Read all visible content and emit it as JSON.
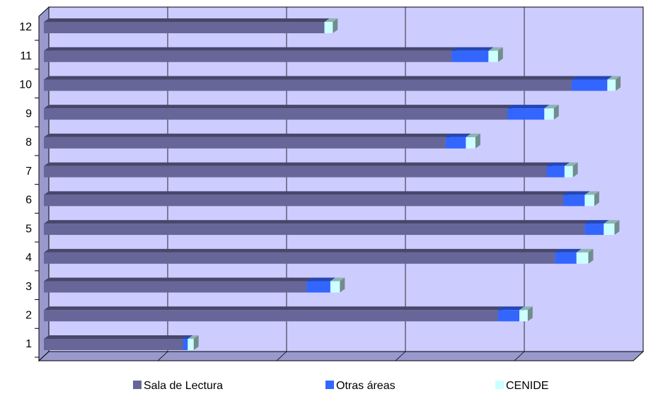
{
  "chart_data": {
    "type": "stacked-bar-3d",
    "categories": [
      "1",
      "2",
      "3",
      "4",
      "5",
      "6",
      "7",
      "8",
      "9",
      "10",
      "11",
      "12"
    ],
    "series": [
      {
        "name": "Sala de Lectura",
        "color": "#666699",
        "values": [
          1.17,
          3.82,
          2.21,
          4.3,
          4.55,
          4.37,
          4.23,
          3.38,
          3.9,
          4.44,
          3.43,
          2.36
        ]
      },
      {
        "name": "Otras áreas",
        "color": "#3366ff",
        "values": [
          0.04,
          0.18,
          0.2,
          0.18,
          0.16,
          0.18,
          0.15,
          0.17,
          0.31,
          0.3,
          0.31,
          0
        ]
      },
      {
        "name": "CENIDE",
        "color": "#ccffff",
        "values": [
          0.05,
          0.07,
          0.08,
          0.1,
          0.09,
          0.08,
          0.07,
          0.08,
          0.08,
          0.07,
          0.08,
          0.07
        ]
      }
    ],
    "xlim": [
      0,
      5
    ],
    "grid": true,
    "legend": "bottom"
  }
}
